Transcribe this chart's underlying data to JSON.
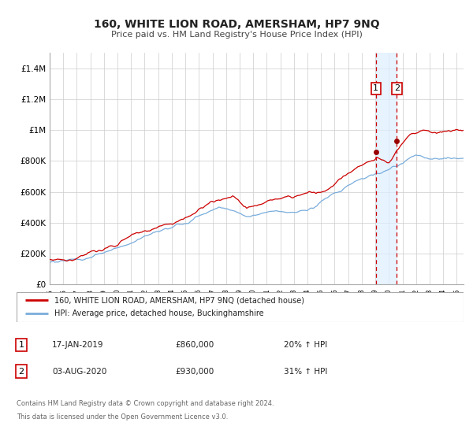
{
  "title": "160, WHITE LION ROAD, AMERSHAM, HP7 9NQ",
  "subtitle": "Price paid vs. HM Land Registry's House Price Index (HPI)",
  "ylim": [
    0,
    1500000
  ],
  "yticks": [
    0,
    200000,
    400000,
    600000,
    800000,
    1000000,
    1200000,
    1400000
  ],
  "ytick_labels": [
    "£0",
    "£200K",
    "£400K",
    "£600K",
    "£800K",
    "£1M",
    "£1.2M",
    "£1.4M"
  ],
  "xlim_start": 1995.0,
  "xlim_end": 2025.5,
  "property_color": "#cc0000",
  "hpi_color": "#7aaddc",
  "point1_x": 2019.04,
  "point1_y": 860000,
  "point2_x": 2020.58,
  "point2_y": 930000,
  "vline1_x": 2019.04,
  "vline2_x": 2020.58,
  "shade_start": 2019.04,
  "shade_end": 2020.58,
  "shade_color": "#ddeeff",
  "legend_line1": "160, WHITE LION ROAD, AMERSHAM, HP7 9NQ (detached house)",
  "legend_line2": "HPI: Average price, detached house, Buckinghamshire",
  "annotation1_label": "1",
  "annotation1_date": "17-JAN-2019",
  "annotation1_price": "£860,000",
  "annotation1_hpi": "20% ↑ HPI",
  "annotation2_label": "2",
  "annotation2_date": "03-AUG-2020",
  "annotation2_price": "£930,000",
  "annotation2_hpi": "31% ↑ HPI",
  "footer_line1": "Contains HM Land Registry data © Crown copyright and database right 2024.",
  "footer_line2": "This data is licensed under the Open Government Licence v3.0.",
  "background_color": "#ffffff",
  "grid_color": "#cccccc"
}
